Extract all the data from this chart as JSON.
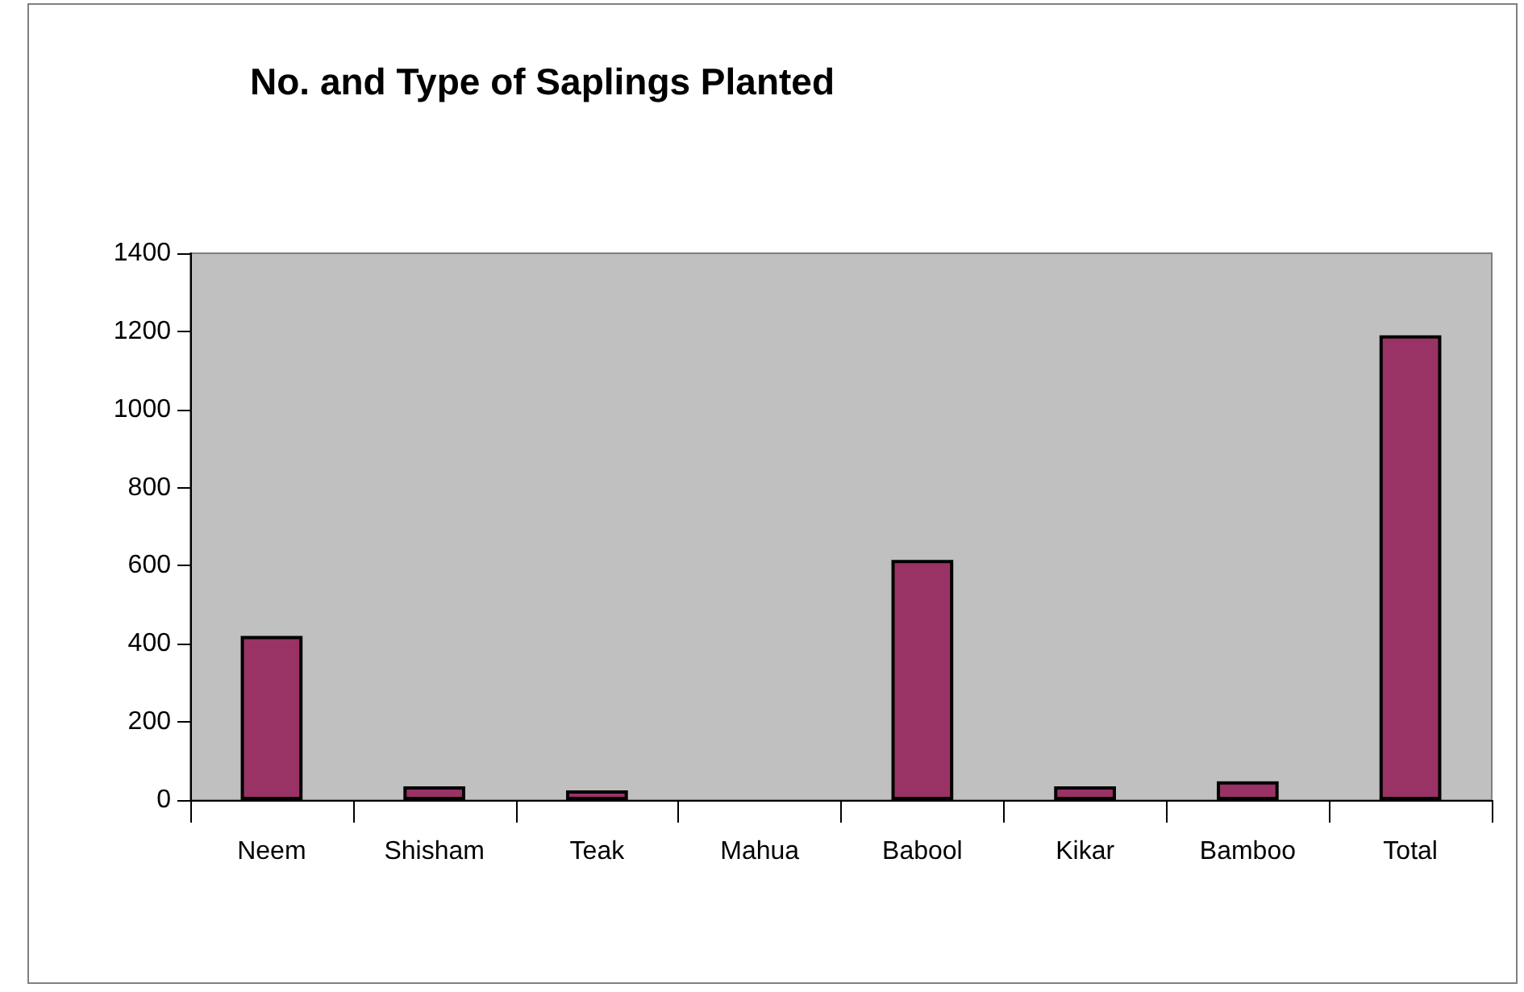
{
  "chart_data": {
    "type": "bar",
    "title": "No. and Type of Saplings Planted",
    "categories": [
      "Neem",
      "Shisham",
      "Teak",
      "Mahua",
      "Babool",
      "Kikar",
      "Bamboo",
      "Total"
    ],
    "values": [
      420,
      35,
      25,
      0,
      615,
      35,
      48,
      1190
    ],
    "color": "#993366",
    "ylim": [
      0,
      1400
    ],
    "yticks": [
      0,
      200,
      400,
      600,
      800,
      1000,
      1200,
      1400
    ],
    "grid": false
  }
}
